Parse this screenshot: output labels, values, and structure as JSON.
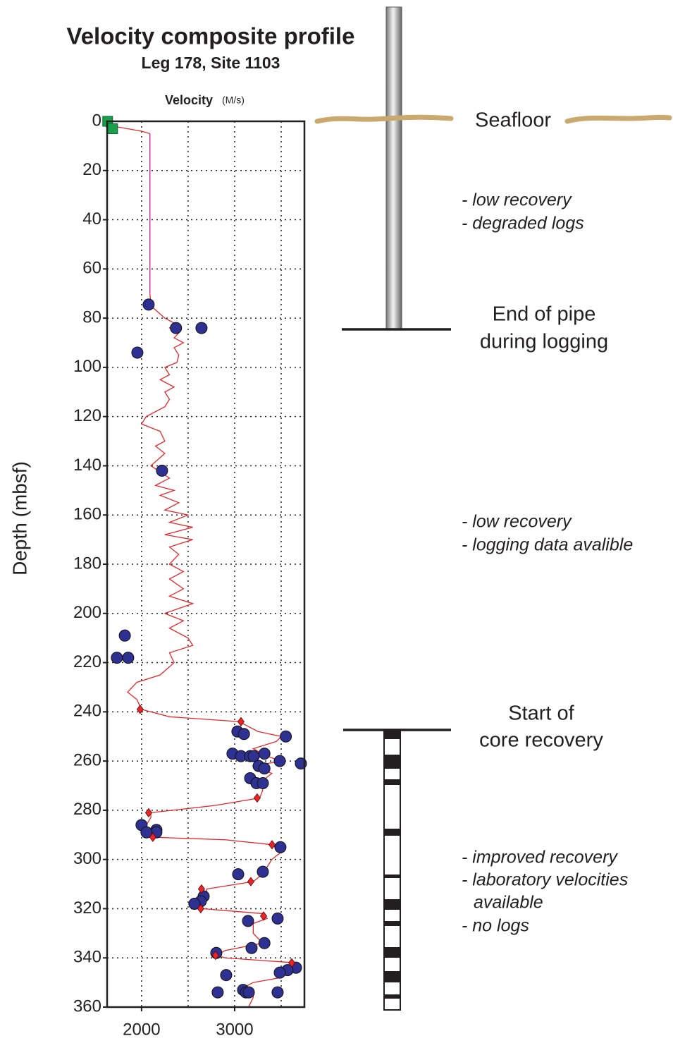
{
  "chart_data": {
    "type": "depth-profile",
    "title": "Velocity composite profile",
    "subtitle": "Leg 178, Site 1103",
    "x_label": "Velocity",
    "x_unit": "(M/s)",
    "y_label": "Depth (mbsf)",
    "xlim": [
      1630,
      3750
    ],
    "xticks": [
      2000,
      3000
    ],
    "xgrid": [
      2000,
      2500,
      3000,
      3500
    ],
    "ylim": [
      0,
      360
    ],
    "yticks": [
      0,
      20,
      40,
      60,
      80,
      100,
      120,
      140,
      160,
      180,
      200,
      220,
      240,
      260,
      280,
      300,
      320,
      340,
      360
    ],
    "grid": true,
    "y_inverted": true,
    "lines": [
      {
        "color": "#e8262a",
        "depth": [
          0,
          2,
          4,
          5
        ],
        "velocity": [
          1650,
          1700,
          2000,
          2090
        ]
      },
      {
        "color": "#c2189b",
        "depth": [
          5,
          70
        ],
        "velocity": [
          2090,
          2090
        ]
      },
      {
        "color": "#e8262a",
        "depth": [
          70,
          75,
          80,
          82,
          84,
          86,
          88,
          90,
          92,
          95,
          98,
          100,
          103,
          105,
          108,
          110,
          113,
          116,
          120,
          123,
          126,
          130,
          132,
          135,
          140,
          145,
          148,
          150,
          152,
          155,
          158,
          160,
          163,
          165,
          168,
          170,
          173,
          176,
          180,
          183,
          186,
          190,
          193,
          196,
          200,
          203,
          206,
          210,
          213,
          216,
          220,
          225,
          228,
          232,
          235,
          239,
          242,
          244,
          246,
          248,
          250,
          252,
          255,
          258,
          260,
          262,
          265,
          268,
          272,
          275,
          278,
          281,
          283,
          286,
          290,
          291,
          292,
          294,
          297,
          300,
          303,
          306,
          309,
          312,
          315,
          318,
          320,
          322,
          324,
          326,
          330,
          334,
          337,
          339,
          340,
          342,
          344,
          346,
          348,
          350,
          352,
          354,
          356,
          360
        ],
        "velocity": [
          2090,
          2100,
          2250,
          2350,
          2300,
          2400,
          2350,
          2450,
          2350,
          2400,
          2380,
          2250,
          2300,
          2200,
          2350,
          2250,
          2300,
          2250,
          2050,
          2000,
          2200,
          2250,
          2150,
          2250,
          2100,
          2300,
          2150,
          2350,
          2200,
          2400,
          2250,
          2500,
          2300,
          2550,
          2250,
          2550,
          2300,
          2400,
          2300,
          2450,
          2300,
          2450,
          2300,
          2550,
          2250,
          2450,
          2300,
          2500,
          2550,
          2300,
          2350,
          2200,
          1950,
          1850,
          1950,
          2000,
          2300,
          3050,
          3150,
          3250,
          3500,
          3450,
          3200,
          3350,
          3500,
          3200,
          3400,
          3300,
          3300,
          3270,
          2800,
          2100,
          2100,
          2050,
          2100,
          2150,
          2900,
          3400,
          3500,
          3400,
          3350,
          3300,
          3200,
          2700,
          2700,
          2650,
          2650,
          3300,
          3350,
          3200,
          3200,
          3300,
          2900,
          2800,
          2900,
          3650,
          3500,
          3500,
          3500,
          3200,
          3100,
          3200,
          3200,
          3150
        ]
      }
    ],
    "points": [
      {
        "marker": "circle",
        "color": "#2e3192",
        "depth": [
          74.5,
          84,
          84,
          94,
          142,
          209,
          218,
          218,
          248,
          249,
          250,
          257,
          258,
          257,
          258,
          258,
          260,
          261,
          262,
          263,
          267,
          269,
          269,
          286,
          288,
          289,
          289,
          295,
          305,
          306,
          315,
          317,
          318,
          325,
          324,
          334,
          336,
          338,
          344,
          345,
          346,
          347,
          353,
          354,
          354,
          354,
          354
        ],
        "velocity": [
          2076,
          2370,
          2644,
          1955,
          2220,
          1820,
          1735,
          1856,
          3030,
          3100,
          3550,
          2977,
          3068,
          3320,
          3167,
          3205,
          3485,
          3712,
          3258,
          3320,
          3167,
          3235,
          3303,
          2000,
          2159,
          2159,
          2053,
          3492,
          3303,
          3038,
          2667,
          2636,
          2568,
          3144,
          3462,
          3320,
          3182,
          2803,
          3659,
          3568,
          3485,
          2909,
          3091,
          2818,
          3121,
          3152,
          3462
        ]
      },
      {
        "marker": "diamond",
        "color": "#e8262a",
        "depth": [
          1,
          239,
          244,
          275,
          281,
          291,
          294,
          309,
          312,
          320,
          323,
          339,
          342
        ],
        "velocity": [
          1629,
          1985,
          3068,
          3242,
          2076,
          2121,
          3402,
          3174,
          2644,
          2636,
          3311,
          2795,
          3614
        ]
      },
      {
        "marker": "square",
        "color": "#1aa04a",
        "depth": [
          0,
          3
        ],
        "velocity": [
          1636,
          1689
        ]
      }
    ],
    "annotations": [
      "Seafloor",
      "- low recovery",
      "- degraded logs",
      "End of pipe",
      "during logging",
      "- low recovery",
      "- logging data avalible",
      "Start of",
      "core recovery",
      "- improved recovery",
      "- laboratory velocities",
      "available",
      "- no logs"
    ]
  }
}
